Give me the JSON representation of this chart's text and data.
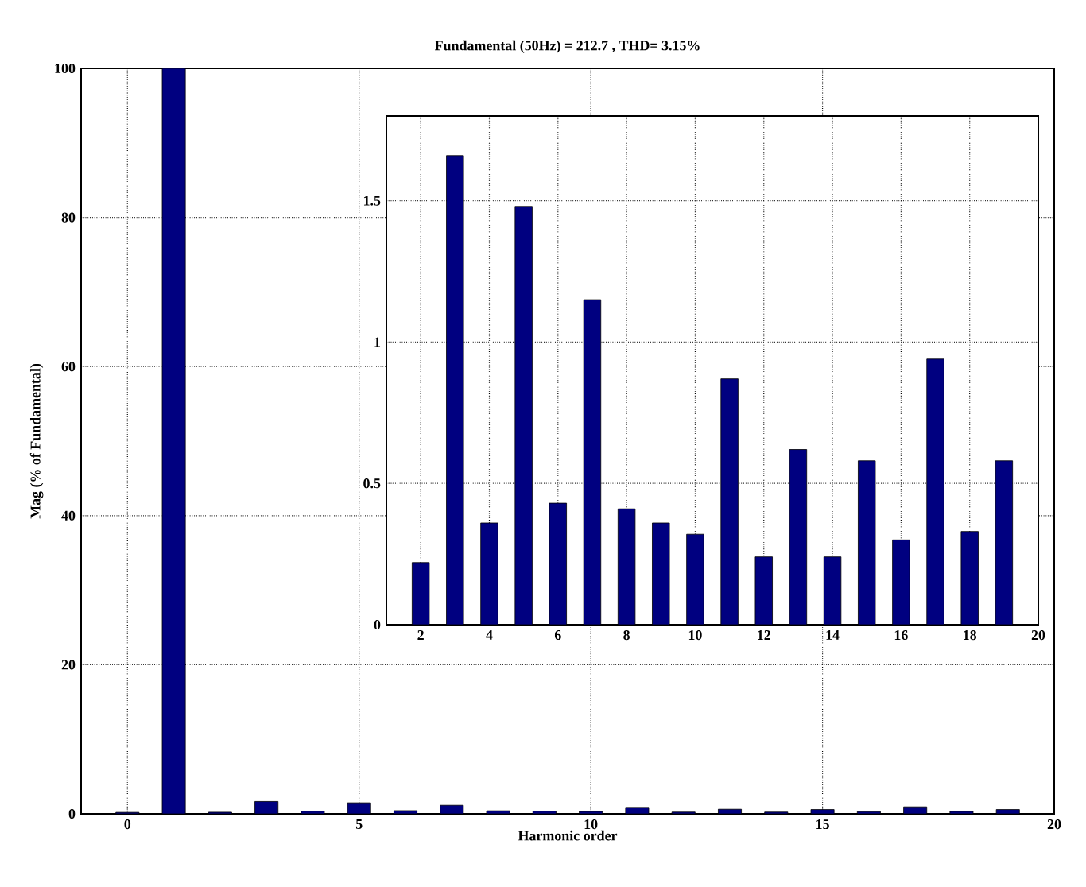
{
  "chart_data": [
    {
      "type": "bar",
      "title": "Fundamental (50Hz) = 212.7 , THD= 3.15%",
      "xlabel": "Harmonic order",
      "ylabel": "Mag (% of Fundamental)",
      "x": [
        0,
        1,
        2,
        3,
        4,
        5,
        6,
        7,
        8,
        9,
        10,
        11,
        12,
        13,
        14,
        15,
        16,
        17,
        18,
        19
      ],
      "values": [
        0.2,
        100,
        0.22,
        1.66,
        0.36,
        1.48,
        0.43,
        1.15,
        0.41,
        0.36,
        0.32,
        0.87,
        0.24,
        0.62,
        0.24,
        0.58,
        0.3,
        0.94,
        0.33,
        0.58
      ],
      "color": "#000080",
      "xlim": [
        -1,
        20
      ],
      "ylim": [
        0,
        100
      ],
      "xticks": [
        0,
        5,
        10,
        15,
        20
      ],
      "yticks": [
        0,
        20,
        40,
        60,
        80,
        100
      ],
      "grid": true
    },
    {
      "type": "bar",
      "x": [
        2,
        3,
        4,
        5,
        6,
        7,
        8,
        9,
        10,
        11,
        12,
        13,
        14,
        15,
        16,
        17,
        18,
        19
      ],
      "values": [
        0.22,
        1.66,
        0.36,
        1.48,
        0.43,
        1.15,
        0.41,
        0.36,
        0.32,
        0.87,
        0.24,
        0.62,
        0.24,
        0.58,
        0.3,
        0.94,
        0.33,
        0.58
      ],
      "color": "#000080",
      "xlim": [
        1,
        20
      ],
      "ylim": [
        0,
        1.8
      ],
      "xticks": [
        2,
        4,
        6,
        8,
        10,
        12,
        14,
        16,
        18,
        20
      ],
      "yticks": [
        0,
        0.5,
        1,
        1.5
      ],
      "grid": true
    }
  ]
}
